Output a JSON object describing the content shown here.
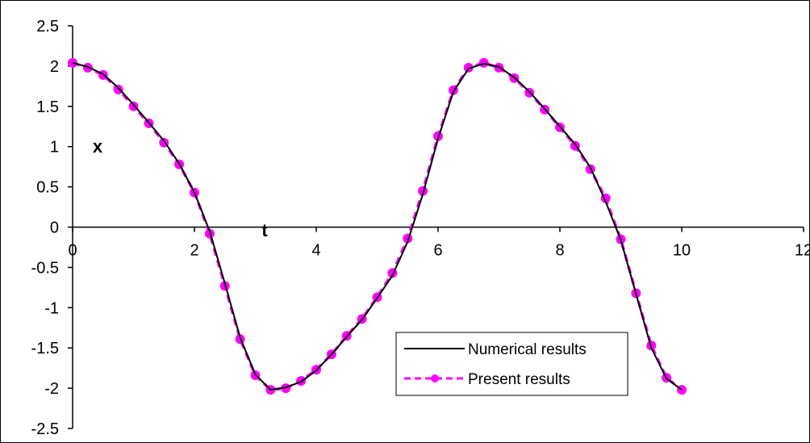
{
  "chart_data": {
    "type": "line",
    "title": "",
    "xlabel": "t",
    "ylabel": "x",
    "xlim": [
      0,
      12
    ],
    "ylim": [
      -2.5,
      2.5
    ],
    "x_ticks": [
      0,
      2,
      4,
      6,
      8,
      10,
      12
    ],
    "x_tick_labels": [
      "0",
      "2",
      "4",
      "6",
      "8",
      "10",
      "12"
    ],
    "y_ticks": [
      2.5,
      2,
      1.5,
      1,
      0.5,
      0,
      -0.5,
      -1,
      -1.5,
      -2,
      -2.5
    ],
    "y_tick_labels": [
      "2.5",
      "2",
      "1.5",
      "1",
      "0.5",
      "0",
      "-0.5",
      "-1",
      "-1.5",
      "-2",
      "-2.5"
    ],
    "grid": false,
    "legend_position": "bottom-center",
    "series": [
      {
        "name": "Numerical results",
        "color": "#000000",
        "style": "solid",
        "x": [
          0,
          0.25,
          0.5,
          0.75,
          1.0,
          1.25,
          1.5,
          1.75,
          2.0,
          2.25,
          2.5,
          2.75,
          3.0,
          3.25,
          3.5,
          3.75,
          4.0,
          4.25,
          4.5,
          4.75,
          5.0,
          5.25,
          5.5,
          5.75,
          6.0,
          6.25,
          6.5,
          6.75,
          7.0,
          7.25,
          7.5,
          7.75,
          8.0,
          8.25,
          8.5,
          8.75,
          9.0,
          9.25,
          9.5,
          9.75,
          10.0
        ],
        "y": [
          2.04,
          1.99,
          1.9,
          1.73,
          1.52,
          1.3,
          1.07,
          0.79,
          0.43,
          -0.05,
          -0.7,
          -1.37,
          -1.83,
          -2.02,
          -1.99,
          -1.92,
          -1.78,
          -1.58,
          -1.36,
          -1.15,
          -0.88,
          -0.6,
          -0.18,
          0.41,
          1.1,
          1.68,
          1.97,
          2.03,
          1.99,
          1.86,
          1.68,
          1.47,
          1.25,
          1.03,
          0.74,
          0.32,
          -0.16,
          -0.83,
          -1.5,
          -1.88,
          -2.02
        ]
      },
      {
        "name": "Present results",
        "color": "#ff00ff",
        "style": "dashed-markers",
        "x": [
          0,
          0.25,
          0.5,
          0.75,
          1.0,
          1.25,
          1.5,
          1.75,
          2.0,
          2.25,
          2.5,
          2.75,
          3.0,
          3.25,
          3.5,
          3.75,
          4.0,
          4.25,
          4.5,
          4.75,
          5.0,
          5.25,
          5.5,
          5.75,
          6.0,
          6.25,
          6.5,
          6.75,
          7.0,
          7.25,
          7.5,
          7.75,
          8.0,
          8.25,
          8.5,
          8.75,
          9.0,
          9.25,
          9.5,
          9.75,
          10.0
        ],
        "y": [
          2.04,
          1.98,
          1.89,
          1.71,
          1.5,
          1.29,
          1.05,
          0.78,
          0.43,
          -0.08,
          -0.73,
          -1.39,
          -1.84,
          -2.02,
          -2.0,
          -1.91,
          -1.77,
          -1.58,
          -1.35,
          -1.14,
          -0.87,
          -0.57,
          -0.14,
          0.45,
          1.13,
          1.7,
          1.98,
          2.04,
          1.98,
          1.85,
          1.67,
          1.46,
          1.24,
          1.01,
          0.72,
          0.36,
          -0.15,
          -0.82,
          -1.47,
          -1.87,
          -2.02
        ]
      }
    ]
  }
}
